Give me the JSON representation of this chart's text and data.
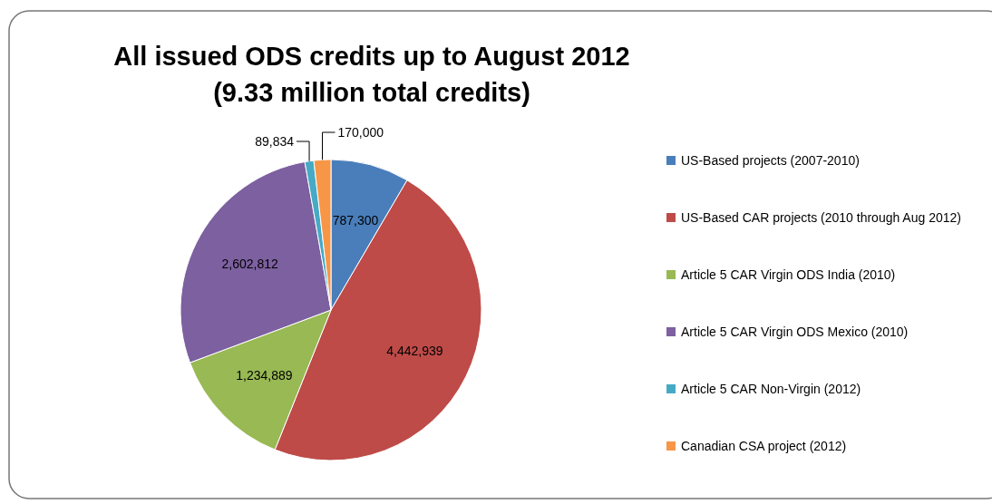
{
  "chart_data": {
    "type": "pie",
    "title": "All issued ODS credits up to August 2012",
    "subtitle": "(9.33 million total credits)",
    "categories": [
      "US-Based projects (2007-2010)",
      "US-Based CAR projects (2010 through Aug 2012)",
      "Article 5 CAR Virgin ODS India (2010)",
      "Article 5 CAR Virgin ODS Mexico (2010)",
      "Article 5 CAR Non-Virgin (2012)",
      "Canadian CSA project (2012)"
    ],
    "values": [
      787300,
      4442939,
      1234889,
      2602812,
      89834,
      170000
    ],
    "colors": [
      "#4a7ebb",
      "#be4b48",
      "#98b954",
      "#7d60a0",
      "#46aac5",
      "#f79646"
    ],
    "value_labels": [
      "787,300",
      "4,442,939",
      "1,234,889",
      "2,602,812",
      "89,834",
      "170,000"
    ],
    "legend": "right"
  }
}
